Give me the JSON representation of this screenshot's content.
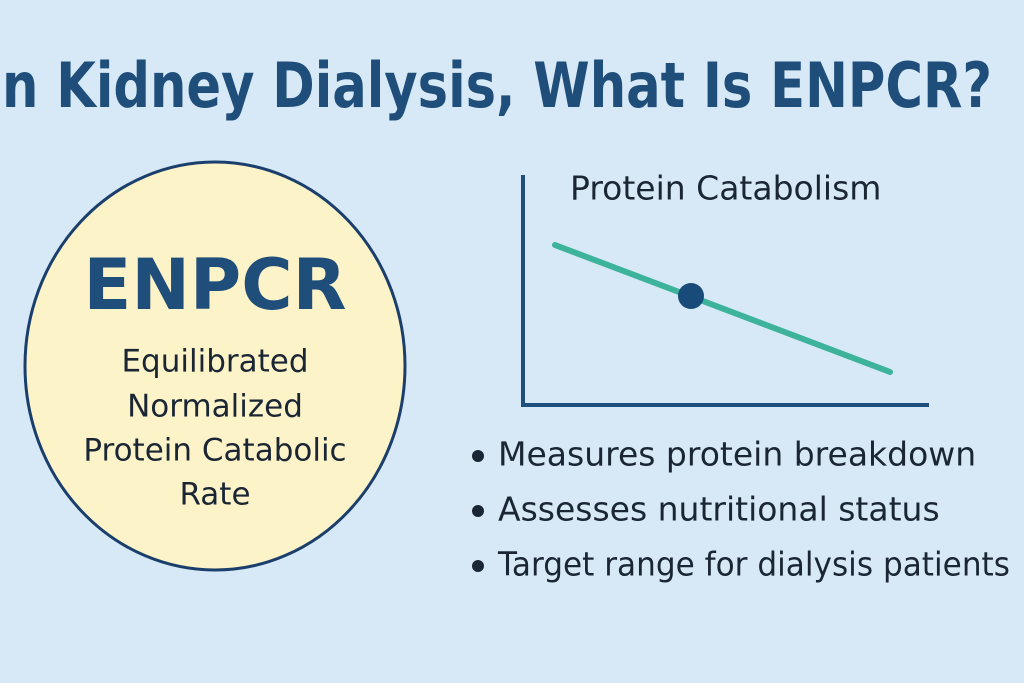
{
  "header": {
    "title": "n Kidney Dialysis, What Is ENPCR?"
  },
  "definition": {
    "acronym": "ENPCR",
    "lines": [
      "Equilibrated",
      "Normalized",
      "Protein Catabolic",
      "Rate"
    ]
  },
  "figure": {
    "title": "Protein Catabolism"
  },
  "bullets": [
    "Measures protein breakdown",
    "Assesses nutritional status",
    "Target range for dialysis patients"
  ]
}
